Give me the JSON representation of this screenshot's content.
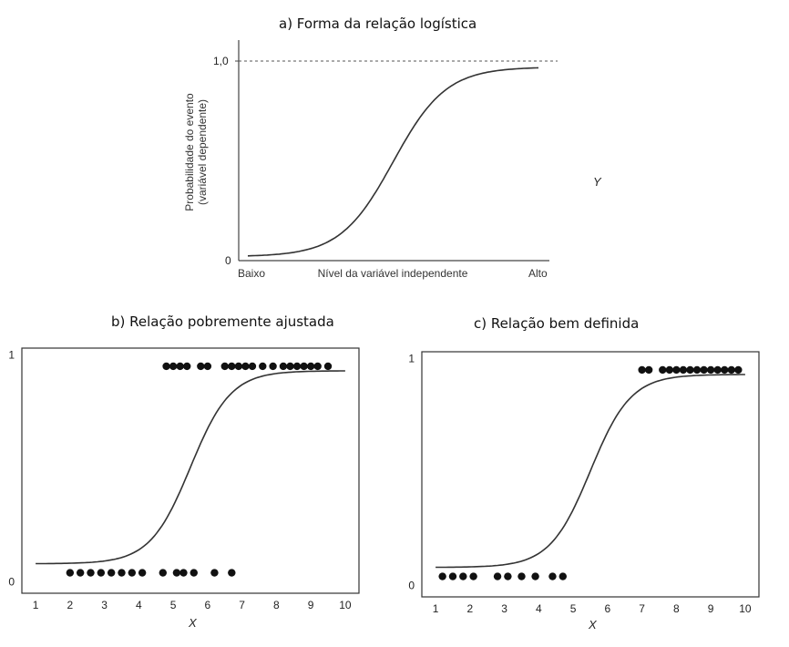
{
  "chart_data": [
    {
      "type": "line",
      "title": "a) Forma da relação logística",
      "xlabel": "Nível da variável independente",
      "ylabel_lines": [
        "Probabilidade do evento",
        "(variável dependente)"
      ],
      "x_tick_labels": [
        "Baixo",
        "Alto"
      ],
      "y_tick_labels": [
        "0",
        "1,0"
      ],
      "reference_line": {
        "y": 1.0,
        "style": "dashed"
      },
      "side_label": "Y",
      "ylim": [
        0,
        1
      ],
      "curve": {
        "shape": "logistic",
        "lower": 0.02,
        "upper": 0.97
      }
    },
    {
      "type": "scatter",
      "title": "b) Relação pobremente ajustada",
      "xlabel": "X",
      "x_ticks": [
        1,
        2,
        3,
        4,
        5,
        6,
        7,
        8,
        9,
        10
      ],
      "y_ticks": [
        0,
        1
      ],
      "xlim": [
        0.6,
        10.4
      ],
      "ylim": [
        -0.05,
        1.03
      ],
      "points_y1": [
        4.8,
        5.0,
        5.2,
        5.4,
        5.8,
        6.0,
        6.5,
        6.7,
        6.9,
        7.1,
        7.3,
        7.6,
        7.9,
        8.2,
        8.4,
        8.6,
        8.8,
        9.0,
        9.2,
        9.5
      ],
      "points_y0": [
        2.0,
        2.3,
        2.6,
        2.9,
        3.2,
        3.5,
        3.8,
        4.1,
        4.7,
        5.1,
        5.3,
        5.6,
        6.2,
        6.7
      ],
      "curve": {
        "shape": "logistic",
        "lower": 0.08,
        "upper": 0.93,
        "midpoint": 5.5,
        "slope": 1.7
      }
    },
    {
      "type": "scatter",
      "title": "c) Relação bem definida",
      "xlabel": "X",
      "x_ticks": [
        1,
        2,
        3,
        4,
        5,
        6,
        7,
        8,
        9,
        10
      ],
      "y_ticks": [
        0,
        1
      ],
      "xlim": [
        0.6,
        10.4
      ],
      "ylim": [
        -0.05,
        1.03
      ],
      "points_y1": [
        7.0,
        7.2,
        7.6,
        7.8,
        8.0,
        8.2,
        8.4,
        8.6,
        8.8,
        9.0,
        9.2,
        9.4,
        9.6,
        9.8
      ],
      "points_y0": [
        1.2,
        1.5,
        1.8,
        2.1,
        2.8,
        3.1,
        3.5,
        3.9,
        4.4,
        4.7
      ],
      "curve": {
        "shape": "logistic",
        "lower": 0.08,
        "upper": 0.93,
        "midpoint": 5.5,
        "slope": 1.7
      }
    }
  ]
}
